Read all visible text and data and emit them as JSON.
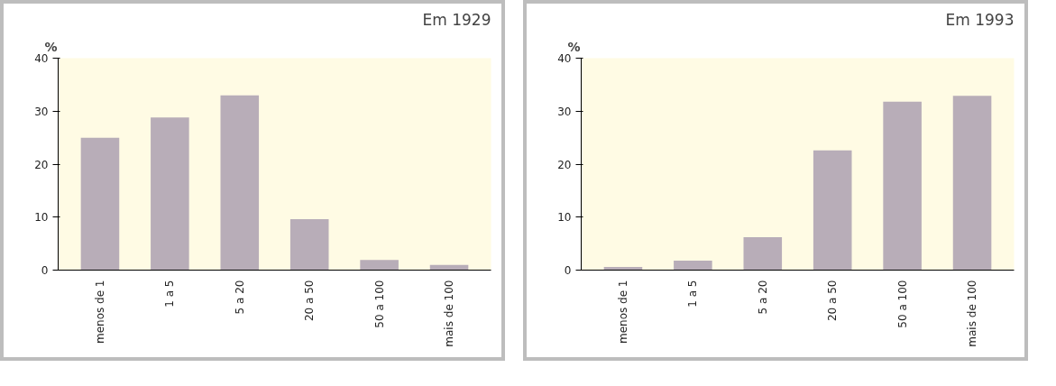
{
  "chart_data": [
    {
      "type": "bar",
      "title": "Em 1929",
      "ylabel": "%",
      "categories": [
        "menos de 1",
        "1 a 5",
        "5 a 20",
        "20 a 50",
        "50 a 100",
        "mais de 100"
      ],
      "values": [
        25,
        28.8,
        33,
        9.6,
        1.9,
        1.0
      ],
      "color": "#b8adb8",
      "ylim": [
        0,
        40
      ],
      "yticks": [
        0,
        10,
        20,
        30,
        40
      ],
      "grid": false
    },
    {
      "type": "bar",
      "title": "Em 1993",
      "ylabel": "%",
      "categories": [
        "menos de 1",
        "1 a 5",
        "5 a 20",
        "20 a 50",
        "50 a 100",
        "mais de 100"
      ],
      "values": [
        0.6,
        1.8,
        6.2,
        22.6,
        31.8,
        32.9
      ],
      "color": "#b8adb8",
      "ylim": [
        0,
        40
      ],
      "yticks": [
        0,
        10,
        20,
        30,
        40
      ],
      "grid": false
    }
  ]
}
